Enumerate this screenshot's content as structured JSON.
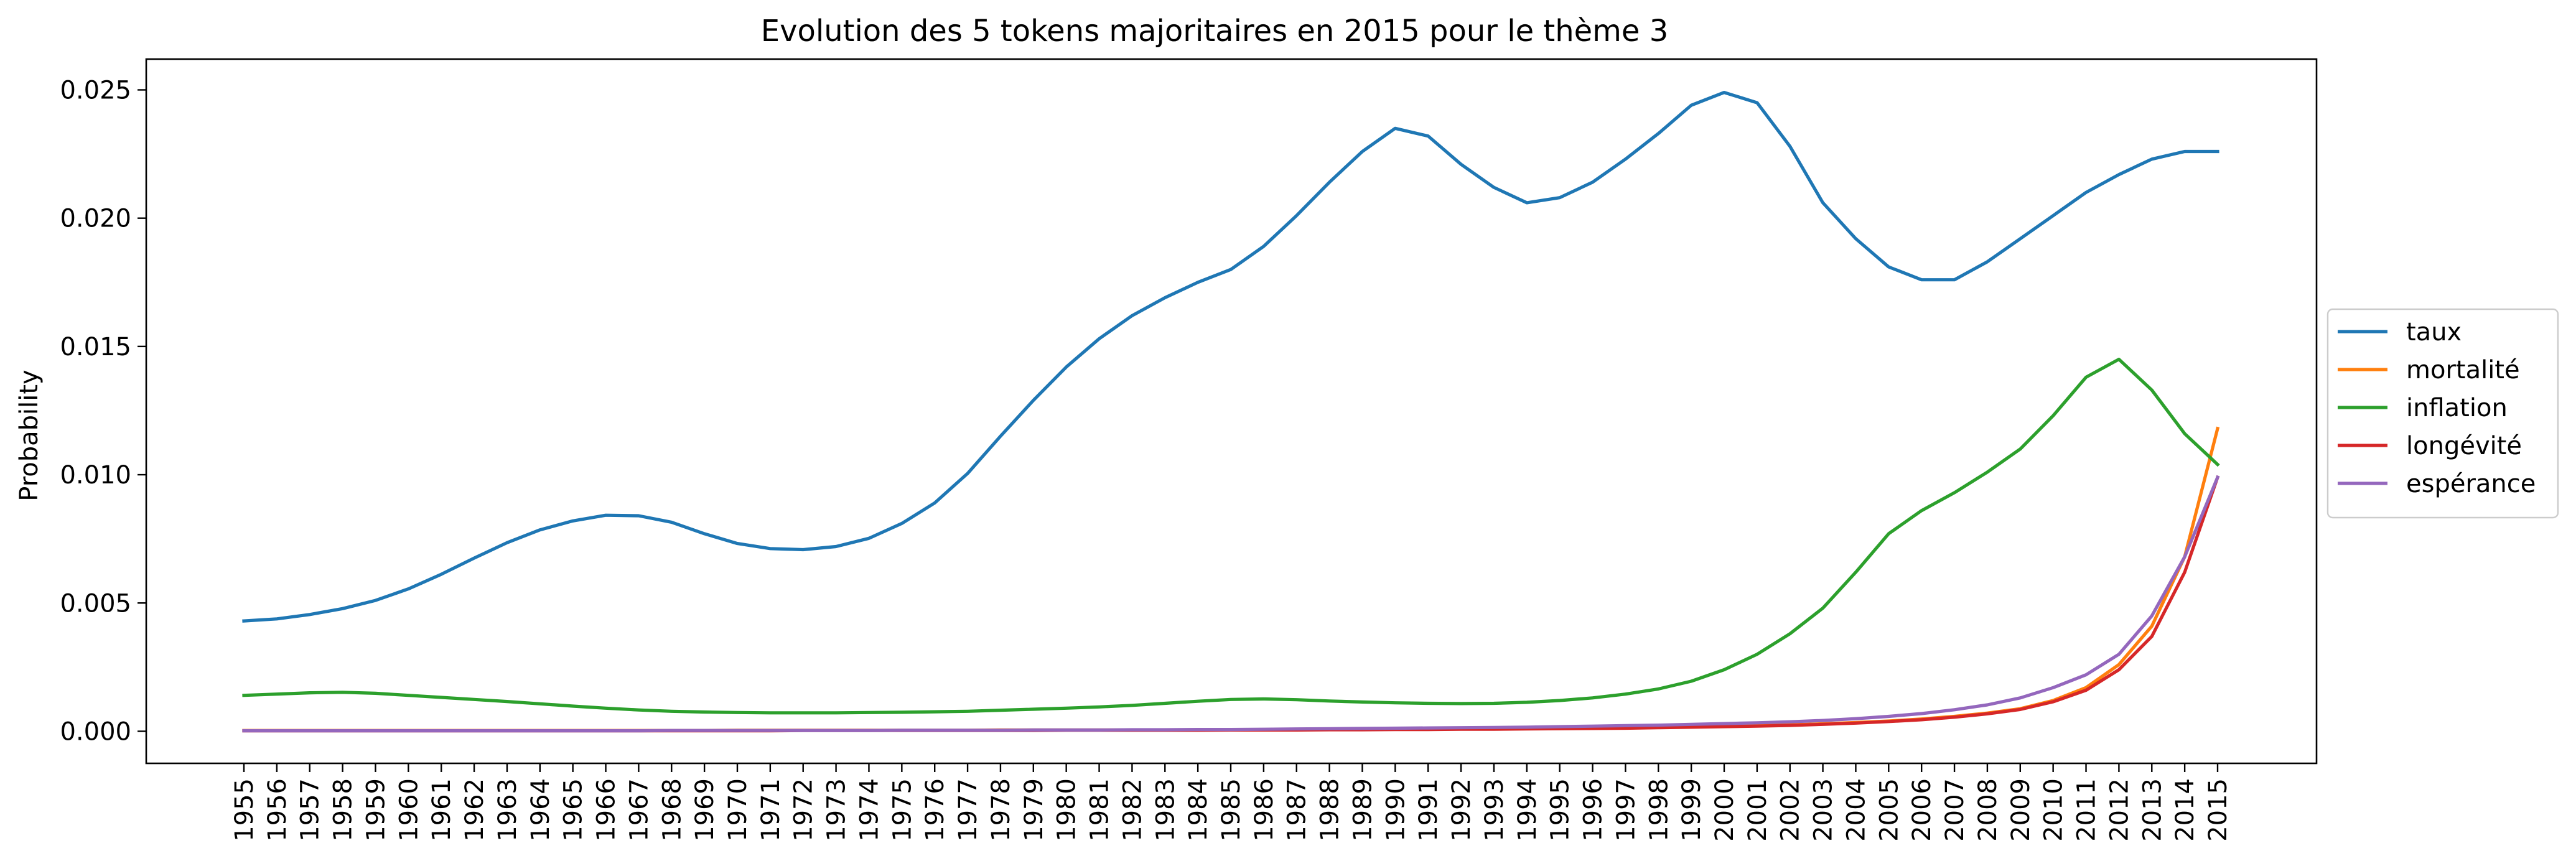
{
  "chart_data": {
    "type": "line",
    "title": "Evolution des 5 tokens majoritaires en 2015 pour le thème 3",
    "xlabel": "",
    "ylabel": "Probability",
    "ylim": [
      -0.00125,
      0.0262
    ],
    "yticks": [
      0.0,
      0.005,
      0.01,
      0.015,
      0.02,
      0.025
    ],
    "ytick_labels": [
      "0.000",
      "0.005",
      "0.010",
      "0.015",
      "0.020",
      "0.025"
    ],
    "legend": "right, outside",
    "grid": false,
    "x": [
      "1955",
      "1956",
      "1957",
      "1958",
      "1959",
      "1960",
      "1961",
      "1962",
      "1963",
      "1964",
      "1965",
      "1966",
      "1967",
      "1968",
      "1969",
      "1970",
      "1971",
      "1972",
      "1973",
      "1974",
      "1975",
      "1976",
      "1977",
      "1978",
      "1979",
      "1980",
      "1981",
      "1982",
      "1983",
      "1984",
      "1985",
      "1986",
      "1987",
      "1988",
      "1989",
      "1990",
      "1991",
      "1992",
      "1993",
      "1994",
      "1995",
      "1996",
      "1997",
      "1998",
      "1999",
      "2000",
      "2001",
      "2002",
      "2003",
      "2004",
      "2005",
      "2006",
      "2007",
      "2008",
      "2009",
      "2010",
      "2011",
      "2012",
      "2013",
      "2014",
      "2015"
    ],
    "series": [
      {
        "name": "taux",
        "color": "#1f77b4",
        "values": [
          0.0043,
          0.00438,
          0.00455,
          0.00478,
          0.0051,
          0.00555,
          0.00612,
          0.00675,
          0.00735,
          0.00785,
          0.0082,
          0.00842,
          0.0084,
          0.00815,
          0.0077,
          0.00732,
          0.00712,
          0.00708,
          0.0072,
          0.00752,
          0.0081,
          0.0089,
          0.01005,
          0.0115,
          0.0129,
          0.0142,
          0.0153,
          0.0162,
          0.0169,
          0.0175,
          0.018,
          0.0189,
          0.0201,
          0.0214,
          0.0226,
          0.0235,
          0.0232,
          0.0221,
          0.0212,
          0.0206,
          0.0208,
          0.0214,
          0.0223,
          0.0233,
          0.0244,
          0.0249,
          0.0245,
          0.0228,
          0.0206,
          0.0192,
          0.0181,
          0.0176,
          0.0176,
          0.0183,
          0.0192,
          0.0201,
          0.021,
          0.0217,
          0.0223,
          0.0226,
          0.0226
        ]
      },
      {
        "name": "mortalité",
        "color": "#ff7f0e",
        "values": [
          3e-05,
          3e-05,
          3e-05,
          3e-05,
          3e-05,
          3e-05,
          3e-05,
          3e-05,
          3e-05,
          3e-05,
          3e-05,
          3e-05,
          3e-05,
          3e-05,
          3e-05,
          4e-05,
          4e-05,
          4e-05,
          4e-05,
          4e-05,
          4e-05,
          4e-05,
          4e-05,
          5e-05,
          5e-05,
          5e-05,
          5e-05,
          5e-05,
          5e-05,
          6e-05,
          6e-05,
          6e-05,
          6e-05,
          7e-05,
          7e-05,
          8e-05,
          8e-05,
          9e-05,
          0.0001,
          0.00011,
          0.00012,
          0.00013,
          0.00014,
          0.00016,
          0.00018,
          0.0002,
          0.00022,
          0.00025,
          0.00029,
          0.00034,
          0.0004,
          0.00048,
          0.00058,
          0.00071,
          0.00088,
          0.0012,
          0.0017,
          0.0026,
          0.0041,
          0.0068,
          0.0118
        ]
      },
      {
        "name": "inflation",
        "color": "#2ca02c",
        "values": [
          0.0014,
          0.00145,
          0.0015,
          0.00152,
          0.00148,
          0.0014,
          0.00132,
          0.00124,
          0.00116,
          0.00107,
          0.00098,
          0.0009,
          0.00083,
          0.00078,
          0.00075,
          0.00073,
          0.00072,
          0.00072,
          0.00072,
          0.00073,
          0.00074,
          0.00076,
          0.00078,
          0.00082,
          0.00086,
          0.0009,
          0.00095,
          0.00101,
          0.00109,
          0.00117,
          0.00124,
          0.00126,
          0.00123,
          0.00118,
          0.00114,
          0.00111,
          0.00109,
          0.00108,
          0.00109,
          0.00113,
          0.0012,
          0.0013,
          0.00145,
          0.00165,
          0.00195,
          0.0024,
          0.003,
          0.0038,
          0.0048,
          0.0062,
          0.0077,
          0.0086,
          0.0093,
          0.0101,
          0.011,
          0.0123,
          0.0138,
          0.0145,
          0.0133,
          0.0116,
          0.0104
        ]
      },
      {
        "name": "longévité",
        "color": "#d62728",
        "values": [
          2e-05,
          2e-05,
          2e-05,
          2e-05,
          2e-05,
          2e-05,
          2e-05,
          2e-05,
          2e-05,
          2e-05,
          2e-05,
          2e-05,
          2e-05,
          2e-05,
          2e-05,
          2e-05,
          2e-05,
          3e-05,
          3e-05,
          3e-05,
          3e-05,
          3e-05,
          3e-05,
          3e-05,
          3e-05,
          4e-05,
          4e-05,
          4e-05,
          4e-05,
          4e-05,
          5e-05,
          5e-05,
          5e-05,
          6e-05,
          6e-05,
          7e-05,
          7e-05,
          8e-05,
          8e-05,
          9e-05,
          0.0001,
          0.00011,
          0.00012,
          0.00014,
          0.00016,
          0.00018,
          0.0002,
          0.00023,
          0.00027,
          0.00032,
          0.00038,
          0.00045,
          0.00055,
          0.00068,
          0.00085,
          0.00115,
          0.0016,
          0.0024,
          0.0037,
          0.0062,
          0.0099
        ]
      },
      {
        "name": "espérance",
        "color": "#9467bd",
        "values": [
          2e-05,
          2e-05,
          2e-05,
          2e-05,
          2e-05,
          2e-05,
          2e-05,
          2e-05,
          2e-05,
          2e-05,
          2e-05,
          2e-05,
          2e-05,
          3e-05,
          3e-05,
          3e-05,
          3e-05,
          3e-05,
          3e-05,
          3e-05,
          4e-05,
          4e-05,
          4e-05,
          4e-05,
          5e-05,
          5e-05,
          5e-05,
          6e-05,
          6e-05,
          7e-05,
          7e-05,
          8e-05,
          9e-05,
          0.0001,
          0.00011,
          0.00012,
          0.00013,
          0.00014,
          0.00015,
          0.00016,
          0.00018,
          0.0002,
          0.00022,
          0.00024,
          0.00027,
          0.0003,
          0.00033,
          0.00037,
          0.00042,
          0.00049,
          0.00058,
          0.00069,
          0.00084,
          0.00103,
          0.0013,
          0.0017,
          0.0022,
          0.003,
          0.0045,
          0.0068,
          0.0099
        ]
      }
    ]
  }
}
